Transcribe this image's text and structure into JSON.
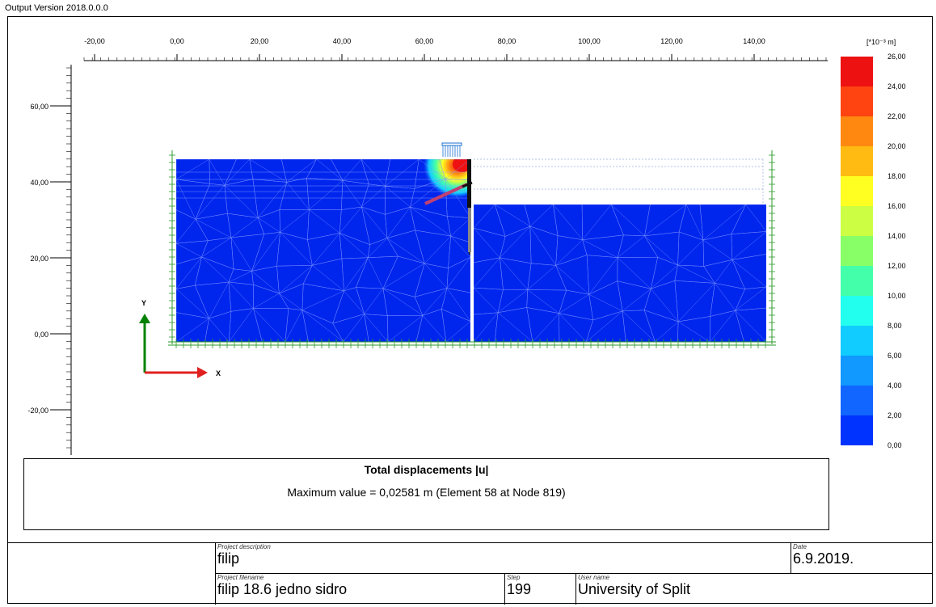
{
  "header": {
    "version": "Output Version 2018.0.0.0"
  },
  "axes": {
    "x_ticks": [
      "-20,00",
      "0,00",
      "20,00",
      "40,00",
      "60,00",
      "80,00",
      "100,00",
      "120,00",
      "140,00"
    ],
    "y_ticks": [
      "60,00",
      "40,00",
      "20,00",
      "0,00",
      "-20,00"
    ],
    "x_label": "X",
    "y_label": "Y",
    "x_color": "#e02020",
    "y_color": "#008000"
  },
  "legend": {
    "unit": "[*10⁻³ m]",
    "values": [
      "26,00",
      "24,00",
      "22,00",
      "20,00",
      "18,00",
      "16,00",
      "14,00",
      "12,00",
      "10,00",
      "8,00",
      "6,00",
      "4,00",
      "2,00",
      "0,00"
    ],
    "colors": [
      "#ee1111",
      "#ff4411",
      "#ff8811",
      "#ffbb11",
      "#ffff22",
      "#ccff44",
      "#88ff66",
      "#44ffaa",
      "#22ffee",
      "#11ccff",
      "#1199ff",
      "#1166ff",
      "#0033ff"
    ]
  },
  "caption": {
    "title": "Total displacements |u|",
    "max_value": "Maximum value = 0,02581 m (Element 58 at Node 819)"
  },
  "title_block": {
    "project_description_label": "Project description",
    "project_description": "filip",
    "date_label": "Date",
    "date": "6.9.2019.",
    "project_filename_label": "Project filename",
    "project_filename": "filip 18.6 jedno sidro",
    "step_label": "Step",
    "step": "199",
    "user_name_label": "User name",
    "user_name": "University of Split"
  }
}
